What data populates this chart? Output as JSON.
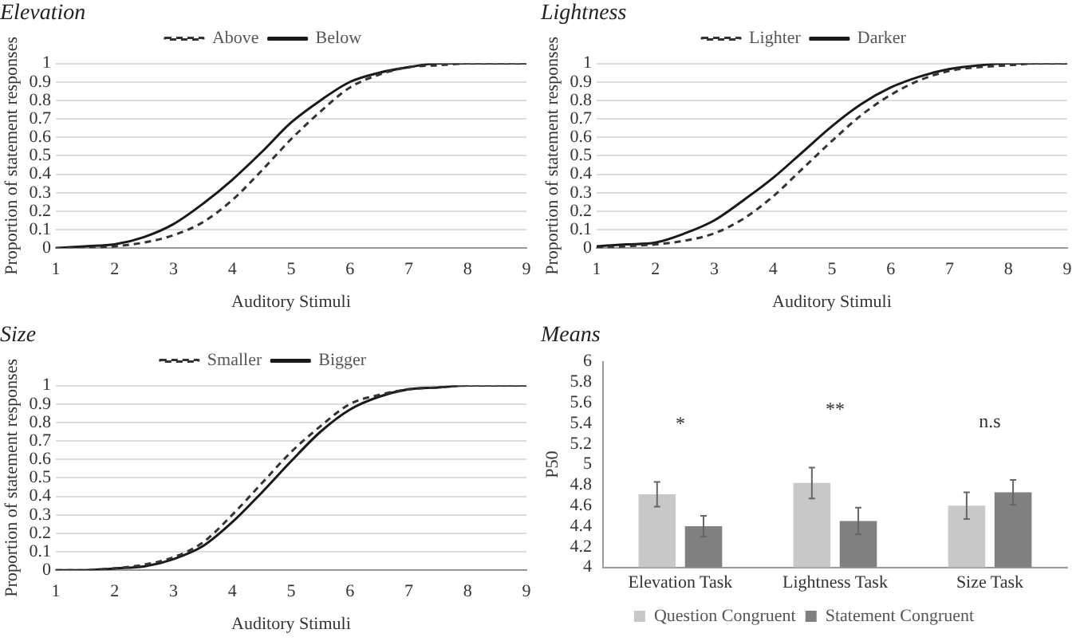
{
  "chart_data": [
    {
      "type": "line",
      "title": "Elevation",
      "xlabel": "Auditory Stimuli",
      "ylabel": "Proportion of statement responses",
      "x": [
        1,
        1.5,
        2,
        2.5,
        3,
        3.5,
        4,
        4.5,
        5,
        5.5,
        6,
        6.5,
        7,
        7.5,
        8,
        8.5,
        9
      ],
      "xlim": [
        1,
        9
      ],
      "xticks": [
        1,
        2,
        3,
        4,
        5,
        6,
        7,
        8,
        9
      ],
      "ylim": [
        0,
        1
      ],
      "yticks": [
        0,
        0.1,
        0.2,
        0.3,
        0.4,
        0.5,
        0.6,
        0.7,
        0.8,
        0.9,
        1
      ],
      "grid": "y",
      "legend": "top",
      "marker": "none",
      "series": [
        {
          "name": "Above",
          "color": "#333333",
          "line_style": "dashed",
          "values": [
            0,
            0,
            0.01,
            0.03,
            0.07,
            0.14,
            0.26,
            0.42,
            0.59,
            0.74,
            0.87,
            0.94,
            0.98,
            0.99,
            1,
            1,
            1
          ]
        },
        {
          "name": "Below",
          "color": "#1a1a1a",
          "line_style": "solid",
          "values": [
            0,
            0.01,
            0.02,
            0.06,
            0.13,
            0.24,
            0.37,
            0.52,
            0.68,
            0.8,
            0.9,
            0.95,
            0.98,
            1,
            1,
            1,
            1
          ]
        }
      ]
    },
    {
      "type": "line",
      "title": "Lightness",
      "xlabel": "Auditory Stimuli",
      "ylabel": "Proportion of statement responses",
      "x": [
        1,
        1.5,
        2,
        2.5,
        3,
        3.5,
        4,
        4.5,
        5,
        5.5,
        6,
        6.5,
        7,
        7.5,
        8,
        8.5,
        9
      ],
      "xlim": [
        1,
        9
      ],
      "xticks": [
        1,
        2,
        3,
        4,
        5,
        6,
        7,
        8,
        9
      ],
      "ylim": [
        0,
        1
      ],
      "yticks": [
        0,
        0.1,
        0.2,
        0.3,
        0.4,
        0.5,
        0.6,
        0.7,
        0.8,
        0.9,
        1
      ],
      "grid": "y",
      "legend": "top",
      "marker": "none",
      "series": [
        {
          "name": "Lighter",
          "color": "#333333",
          "line_style": "dashed",
          "values": [
            0,
            0.01,
            0.02,
            0.04,
            0.08,
            0.16,
            0.28,
            0.43,
            0.58,
            0.72,
            0.83,
            0.91,
            0.96,
            0.98,
            0.99,
            1,
            1
          ]
        },
        {
          "name": "Darker",
          "color": "#1a1a1a",
          "line_style": "solid",
          "values": [
            0.01,
            0.02,
            0.03,
            0.08,
            0.15,
            0.26,
            0.38,
            0.52,
            0.66,
            0.78,
            0.87,
            0.93,
            0.97,
            0.99,
            1,
            1,
            1
          ]
        }
      ]
    },
    {
      "type": "line",
      "title": "Size",
      "xlabel": "Auditory Stimuli",
      "ylabel": "Proportion of statement responses",
      "x": [
        1,
        1.5,
        2,
        2.5,
        3,
        3.5,
        4,
        4.5,
        5,
        5.5,
        6,
        6.5,
        7,
        7.5,
        8,
        8.5,
        9
      ],
      "xlim": [
        1,
        9
      ],
      "xticks": [
        1,
        2,
        3,
        4,
        5,
        6,
        7,
        8,
        9
      ],
      "ylim": [
        0,
        1
      ],
      "yticks": [
        0,
        0.1,
        0.2,
        0.3,
        0.4,
        0.5,
        0.6,
        0.7,
        0.8,
        0.9,
        1
      ],
      "grid": "y",
      "legend": "top",
      "marker": "none",
      "series": [
        {
          "name": "Smaller",
          "color": "#333333",
          "line_style": "dashed",
          "values": [
            0,
            0,
            0.01,
            0.03,
            0.07,
            0.15,
            0.3,
            0.47,
            0.64,
            0.78,
            0.9,
            0.95,
            0.98,
            0.99,
            1,
            1,
            1
          ]
        },
        {
          "name": "Bigger",
          "color": "#1a1a1a",
          "line_style": "solid",
          "values": [
            0,
            0,
            0.01,
            0.02,
            0.06,
            0.13,
            0.26,
            0.42,
            0.59,
            0.75,
            0.87,
            0.94,
            0.98,
            0.99,
            1,
            1,
            1
          ]
        }
      ]
    },
    {
      "type": "bar",
      "title": "Means",
      "ylabel": "P50",
      "categories": [
        "Elevation Task",
        "Lightness Task",
        "Size Task"
      ],
      "ylim": [
        4,
        6
      ],
      "yticks": [
        4,
        4.2,
        4.4,
        4.6,
        4.8,
        5,
        5.2,
        5.4,
        5.6,
        5.8,
        6
      ],
      "grid": false,
      "legend": "bottom",
      "series": [
        {
          "name": "Question Congruent",
          "color": "#c8c8c8",
          "values": [
            4.71,
            4.82,
            4.6
          ],
          "errors": [
            0.12,
            0.15,
            0.13
          ]
        },
        {
          "name": "Statement Congruent",
          "color": "#808080",
          "values": [
            4.4,
            4.45,
            4.73
          ],
          "errors": [
            0.1,
            0.13,
            0.12
          ]
        }
      ],
      "annotations": [
        "*",
        "**",
        "n.s"
      ]
    }
  ]
}
